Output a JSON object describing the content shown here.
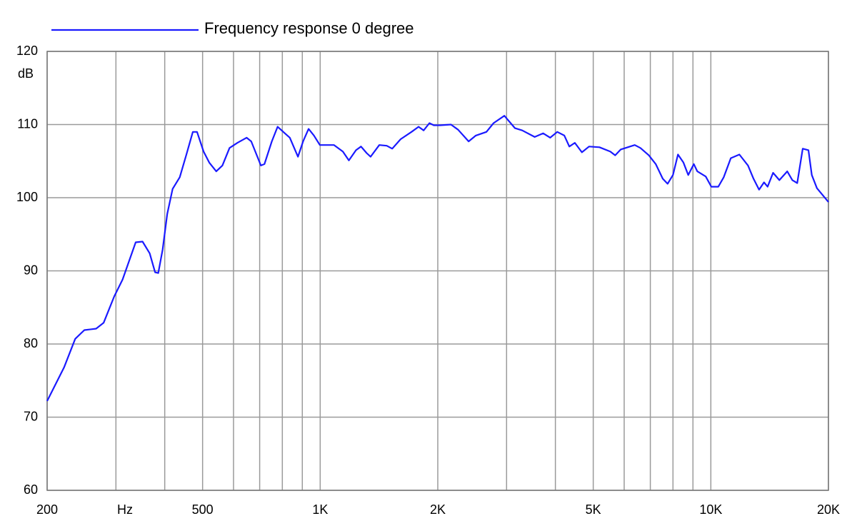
{
  "chart_data": {
    "type": "line",
    "xlabel": "Hz",
    "ylabel": "dB",
    "xscale": "log",
    "grid": true,
    "xlim": [
      200,
      20000
    ],
    "ylim": [
      60,
      120
    ],
    "xticks": [
      200,
      500,
      {
        "value": 1000,
        "label": "1K"
      },
      {
        "value": 2000,
        "label": "2K"
      },
      {
        "value": 5000,
        "label": "5K"
      },
      {
        "value": 10000,
        "label": "10K"
      },
      {
        "value": 20000,
        "label": "20K"
      }
    ],
    "xminor": [
      300,
      400,
      600,
      700,
      800,
      900,
      3000,
      4000,
      6000,
      7000,
      8000,
      9000
    ],
    "yticks": [
      60,
      70,
      80,
      90,
      100,
      110,
      120
    ],
    "x": [
      200,
      221,
      236,
      249,
      267,
      279,
      297,
      312,
      337,
      351,
      366,
      378,
      385,
      395,
      406,
      419,
      437,
      455,
      472,
      484,
      503,
      520,
      542,
      562,
      586,
      614,
      648,
      666,
      705,
      720,
      752,
      778,
      812,
      836,
      877,
      904,
      934,
      964,
      998,
      1085,
      1143,
      1184,
      1235,
      1272,
      1315,
      1346,
      1417,
      1480,
      1529,
      1607,
      1713,
      1786,
      1840,
      1904,
      1953,
      2030,
      2161,
      2254,
      2399,
      2503,
      2664,
      2779,
      2961,
      3153,
      3289,
      3541,
      3722,
      3880,
      4045,
      4217,
      4343,
      4486,
      4677,
      4877,
      5188,
      5529,
      5690,
      5880,
      6386,
      6602,
      6937,
      7228,
      7532,
      7751,
      8000,
      8240,
      8510,
      8754,
      9046,
      9232,
      9704,
      10030,
      10450,
      10790,
      11250,
      11830,
      12450,
      12860,
      13290,
      13680,
      13970,
      14430,
      14980,
      15690,
      16170,
      16640,
      17190,
      17780,
      18130,
      18690,
      20000
    ],
    "series": [
      {
        "name": "Frequency response 0 degree",
        "color": "#1a1aff",
        "values": [
          72.2,
          76.8,
          80.7,
          81.9,
          82.1,
          82.9,
          86.5,
          88.8,
          93.9,
          94.0,
          92.4,
          89.8,
          89.7,
          92.9,
          97.8,
          101.2,
          102.8,
          106.0,
          109.0,
          109.0,
          106.3,
          104.8,
          103.6,
          104.4,
          106.8,
          107.5,
          108.2,
          107.7,
          104.4,
          104.6,
          107.7,
          109.7,
          108.8,
          108.2,
          105.6,
          107.7,
          109.4,
          108.5,
          107.2,
          107.2,
          106.3,
          105.1,
          106.5,
          107.0,
          106.1,
          105.6,
          107.2,
          107.1,
          106.7,
          108.0,
          109.0,
          109.7,
          109.2,
          110.2,
          109.9,
          109.9,
          110.0,
          109.3,
          107.7,
          108.5,
          109.0,
          110.2,
          111.2,
          109.5,
          109.2,
          108.3,
          108.8,
          108.2,
          109.0,
          108.5,
          107.0,
          107.5,
          106.2,
          107.0,
          106.9,
          106.3,
          105.8,
          106.6,
          107.2,
          106.8,
          105.8,
          104.6,
          102.6,
          101.9,
          103.1,
          105.9,
          104.8,
          103.1,
          104.6,
          103.6,
          102.9,
          101.5,
          101.5,
          102.8,
          105.4,
          105.9,
          104.4,
          102.6,
          101.1,
          102.1,
          101.5,
          103.4,
          102.4,
          103.6,
          102.4,
          102.0,
          106.7,
          106.5,
          103.1,
          101.3,
          99.4
        ]
      }
    ]
  }
}
